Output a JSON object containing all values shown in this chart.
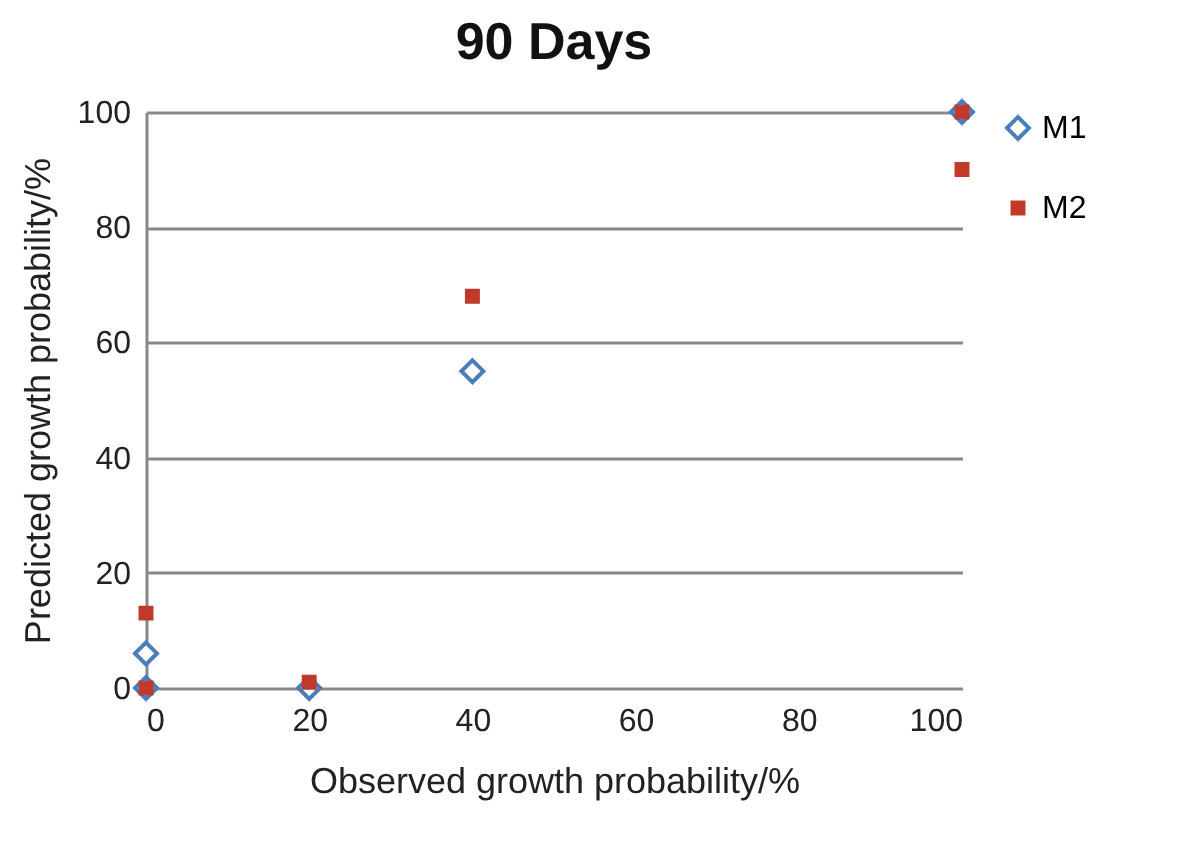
{
  "chart_data": {
    "type": "scatter",
    "title": "90 Days",
    "xlabel": "Observed growth probability/%",
    "ylabel": "Predicted growth probability/%",
    "xlim": [
      0,
      100
    ],
    "xticks": [
      0,
      20,
      40,
      60,
      80,
      100
    ],
    "ylim": [
      0,
      100
    ],
    "yticks": [
      0,
      20,
      40,
      60,
      80,
      100
    ],
    "grid": "y",
    "legend": "right",
    "series": [
      {
        "name": "M1",
        "color": "#4a7ebb",
        "marker": "diamond",
        "x": [
          0,
          0,
          20,
          40,
          100
        ],
        "values": [
          0,
          6,
          0,
          55,
          100
        ]
      },
      {
        "name": "M2",
        "color": "#c0392b",
        "marker": "square",
        "x": [
          0,
          0,
          20,
          40,
          100,
          100
        ],
        "values": [
          13,
          0,
          1,
          68,
          100,
          90
        ]
      }
    ]
  }
}
